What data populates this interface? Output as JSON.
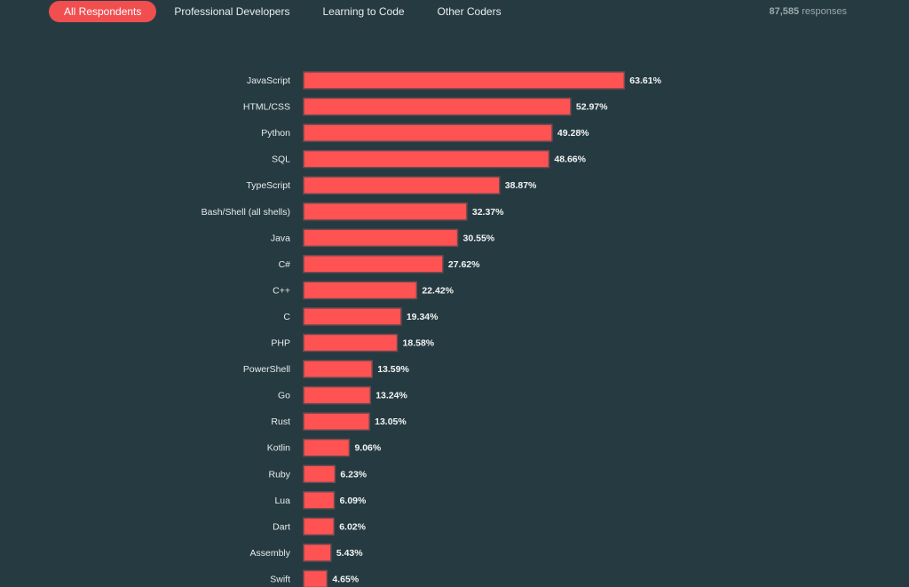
{
  "tabs": [
    {
      "label": "All Respondents",
      "active": true
    },
    {
      "label": "Professional Developers",
      "active": false
    },
    {
      "label": "Learning to Code",
      "active": false
    },
    {
      "label": "Other Coders",
      "active": false
    }
  ],
  "responses": {
    "count": "87,585",
    "label": "responses"
  },
  "colors": {
    "bar": "#ff5353",
    "background": "#263b41",
    "active_tab": "#f04e4f"
  },
  "chart_data": {
    "type": "bar",
    "orientation": "horizontal",
    "categories": [
      "JavaScript",
      "HTML/CSS",
      "Python",
      "SQL",
      "TypeScript",
      "Bash/Shell (all shells)",
      "Java",
      "C#",
      "C++",
      "C",
      "PHP",
      "PowerShell",
      "Go",
      "Rust",
      "Kotlin",
      "Ruby",
      "Lua",
      "Dart",
      "Assembly",
      "Swift"
    ],
    "values": [
      63.61,
      52.97,
      49.28,
      48.66,
      38.87,
      32.37,
      30.55,
      27.62,
      22.42,
      19.34,
      18.58,
      13.59,
      13.24,
      13.05,
      9.06,
      6.23,
      6.09,
      6.02,
      5.43,
      4.65
    ],
    "value_labels": [
      "63.61%",
      "52.97%",
      "49.28%",
      "48.66%",
      "38.87%",
      "32.37%",
      "30.55%",
      "27.62%",
      "22.42%",
      "19.34%",
      "18.58%",
      "13.59%",
      "13.24%",
      "13.05%",
      "9.06%",
      "6.23%",
      "6.09%",
      "6.02%",
      "5.43%",
      "4.65%"
    ],
    "title": "",
    "xlabel": "",
    "ylabel": "",
    "xlim": [
      0,
      100
    ],
    "grid": false,
    "legend": "none"
  }
}
